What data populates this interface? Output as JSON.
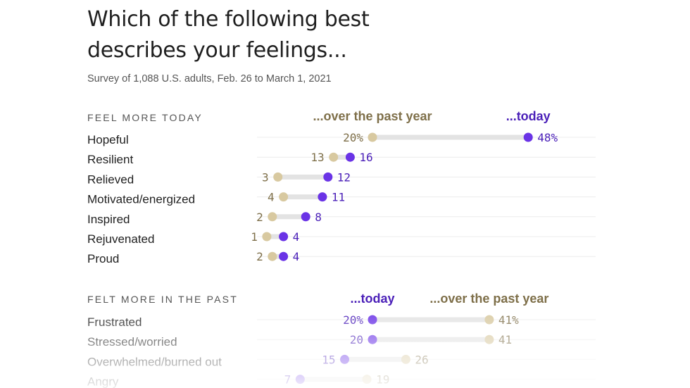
{
  "title": "Which of the following best describes your feelings...",
  "subtitle": "Survey of 1,088 U.S. adults, Feb. 26 to March 1, 2021",
  "colors": {
    "past": "#d8c9a0",
    "today": "#6a33e6",
    "past_text": "#7e6f49",
    "today_text": "#4a1fb8",
    "track": "#e3e3e3",
    "row_line": "#ececec",
    "label": "#1f1f1f",
    "section": "#555555"
  },
  "chart_data": [
    {
      "type": "dumbbell",
      "section_label": "FEEL MORE TODAY",
      "header_past": "...over the past year",
      "header_today": "...today",
      "unit": "%",
      "rows": [
        {
          "label": "Hopeful",
          "past": 20,
          "today": 48
        },
        {
          "label": "Resilient",
          "past": 13,
          "today": 16
        },
        {
          "label": "Relieved",
          "past": 3,
          "today": 12
        },
        {
          "label": "Motivated/energized",
          "past": 4,
          "today": 11
        },
        {
          "label": "Inspired",
          "past": 2,
          "today": 8
        },
        {
          "label": "Rejuvenated",
          "past": 1,
          "today": 4
        },
        {
          "label": "Proud",
          "past": 2,
          "today": 4
        }
      ]
    },
    {
      "type": "dumbbell",
      "section_label": "FELT MORE IN THE PAST",
      "header_today": "...today",
      "header_past": "...over the past year",
      "unit": "%",
      "rows": [
        {
          "label": "Frustrated",
          "today": 20,
          "past": 41
        },
        {
          "label": "Stressed/worried",
          "today": 20,
          "past": 41
        },
        {
          "label": "Overwhelmed/burned out",
          "today": 15,
          "past": 26
        },
        {
          "label": "Angry",
          "today": 7,
          "past": 19
        }
      ]
    }
  ]
}
